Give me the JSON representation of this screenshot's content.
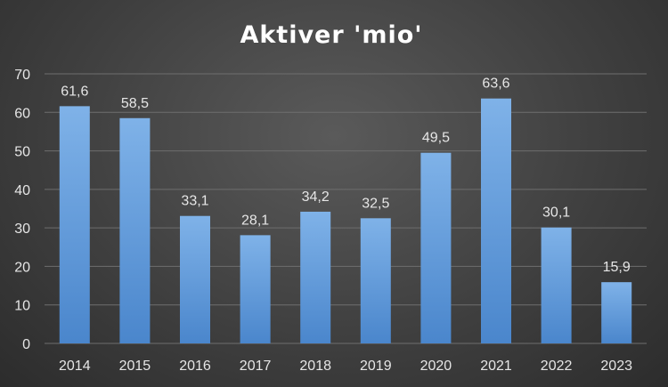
{
  "chart_data": {
    "type": "bar",
    "title": "Aktiver 'mio'",
    "xlabel": "",
    "ylabel": "",
    "categories": [
      "2014",
      "2015",
      "2016",
      "2017",
      "2018",
      "2019",
      "2020",
      "2021",
      "2022",
      "2023"
    ],
    "values": [
      61.6,
      58.5,
      33.1,
      28.1,
      34.2,
      32.5,
      49.5,
      63.6,
      30.1,
      15.9
    ],
    "data_labels": [
      "61,6",
      "58,5",
      "33,1",
      "28,1",
      "34,2",
      "32,5",
      "49,5",
      "63,6",
      "30,1",
      "15,9"
    ],
    "ylim": [
      0,
      70
    ],
    "yticks": [
      "0",
      "10",
      "20",
      "30",
      "40",
      "50",
      "60",
      "70"
    ],
    "grid": true,
    "legend": "none",
    "colors": {
      "bar_top": "#7fb2e8",
      "bar_bottom": "#4a86cc",
      "background": "#404040"
    }
  }
}
